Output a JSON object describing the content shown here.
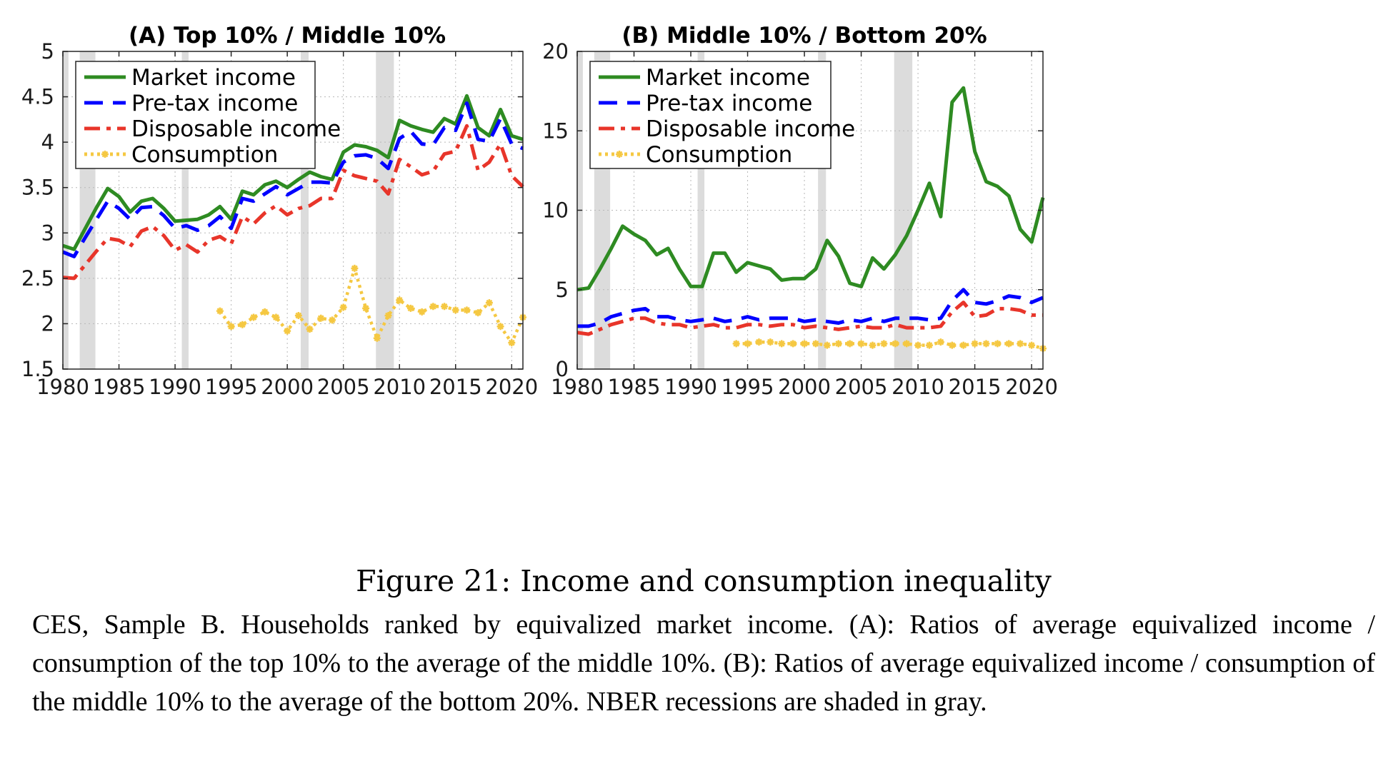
{
  "caption": {
    "title": "Figure 21: Income and consumption inequality",
    "text": "CES, Sample B. Households ranked by equivalized market income. (A): Ratios of average equivalized income / consumption of the top 10% to the average of the middle 10%. (B): Ratios of average equivalized income / consumption of the middle 10% to the average of the bottom 20%. NBER recessions are shaded in gray."
  },
  "colors": {
    "market": "#2e8b22",
    "pretax": "#0000ff",
    "disposable": "#e8352a",
    "consumption": "#f5c842",
    "recession": "#dcdcdc"
  },
  "chart_data": [
    {
      "type": "line",
      "title": "(A) Top 10% / Middle 10%",
      "xlim": [
        1980,
        2021
      ],
      "ylim": [
        1.5,
        5
      ],
      "xticks": [
        "1980",
        "1985",
        "1990",
        "1995",
        "2000",
        "2005",
        "2010",
        "2015",
        "2020"
      ],
      "yticks": [
        "1.5",
        "2",
        "2.5",
        "3",
        "3.5",
        "4",
        "4.5",
        "5"
      ],
      "grid": true,
      "legend_position": "top-left",
      "recessions": [
        [
          1980,
          1980.5
        ],
        [
          1981.5,
          1982.9
        ],
        [
          1990.6,
          1991.2
        ],
        [
          2001.2,
          2001.9
        ],
        [
          2007.9,
          2009.5
        ]
      ],
      "x": [
        1980,
        1981,
        1982,
        1983,
        1984,
        1985,
        1986,
        1987,
        1988,
        1989,
        1990,
        1991,
        1992,
        1993,
        1994,
        1995,
        1996,
        1997,
        1998,
        1999,
        2000,
        2001,
        2002,
        2003,
        2004,
        2005,
        2006,
        2007,
        2008,
        2009,
        2010,
        2011,
        2012,
        2013,
        2014,
        2015,
        2016,
        2017,
        2018,
        2019,
        2020,
        2021
      ],
      "series": [
        {
          "name": "Market income",
          "key": "market",
          "style": "solid",
          "values": [
            2.86,
            2.82,
            3.05,
            3.28,
            3.49,
            3.4,
            3.23,
            3.35,
            3.38,
            3.27,
            3.13,
            3.14,
            3.15,
            3.2,
            3.29,
            3.15,
            3.46,
            3.42,
            3.53,
            3.57,
            3.5,
            3.59,
            3.67,
            3.62,
            3.59,
            3.89,
            3.97,
            3.95,
            3.91,
            3.83,
            4.24,
            4.18,
            4.14,
            4.11,
            4.26,
            4.2,
            4.51,
            4.16,
            4.07,
            4.36,
            4.07,
            4.03
          ]
        },
        {
          "name": "Pre-tax income",
          "key": "pretax",
          "style": "dashed",
          "values": [
            2.79,
            2.74,
            2.95,
            3.15,
            3.35,
            3.27,
            3.15,
            3.28,
            3.29,
            3.19,
            3.05,
            3.08,
            3.03,
            3.08,
            3.18,
            3.05,
            3.38,
            3.35,
            3.43,
            3.51,
            3.42,
            3.49,
            3.56,
            3.56,
            3.55,
            3.78,
            3.85,
            3.86,
            3.82,
            3.71,
            4.04,
            4.12,
            3.98,
            3.97,
            4.16,
            4.13,
            4.43,
            4.03,
            4.01,
            4.26,
            3.98,
            3.93
          ]
        },
        {
          "name": "Disposable income",
          "key": "disposable",
          "style": "dashdot",
          "values": [
            2.51,
            2.5,
            2.65,
            2.8,
            2.94,
            2.92,
            2.85,
            3.02,
            3.07,
            2.97,
            2.81,
            2.87,
            2.79,
            2.92,
            2.96,
            2.88,
            3.18,
            3.1,
            3.22,
            3.3,
            3.2,
            3.27,
            3.3,
            3.38,
            3.38,
            3.69,
            3.63,
            3.6,
            3.57,
            3.43,
            3.81,
            3.73,
            3.64,
            3.68,
            3.87,
            3.9,
            4.18,
            3.69,
            3.78,
            3.98,
            3.63,
            3.51
          ]
        },
        {
          "name": "Consumption",
          "key": "consumption",
          "style": "dotted-marker",
          "x": [
            1994,
            1995,
            1996,
            1997,
            1998,
            1999,
            2000,
            2001,
            2002,
            2003,
            2004,
            2005,
            2006,
            2007,
            2008,
            2009,
            2010,
            2011,
            2012,
            2013,
            2014,
            2015,
            2016,
            2017,
            2018,
            2019,
            2020,
            2021
          ],
          "values": [
            2.14,
            1.97,
            1.99,
            2.07,
            2.13,
            2.07,
            1.92,
            2.09,
            1.94,
            2.06,
            2.04,
            2.18,
            2.61,
            2.17,
            1.84,
            2.09,
            2.26,
            2.17,
            2.13,
            2.19,
            2.19,
            2.15,
            2.15,
            2.12,
            2.23,
            1.97,
            1.79,
            2.07
          ]
        }
      ]
    },
    {
      "type": "line",
      "title": "(B) Middle 10% / Bottom 20%",
      "xlim": [
        1980,
        2021
      ],
      "ylim": [
        0,
        20
      ],
      "xticks": [
        "1980",
        "1985",
        "1990",
        "1995",
        "2000",
        "2005",
        "2010",
        "2015",
        "2020"
      ],
      "yticks": [
        "0",
        "5",
        "10",
        "15",
        "20"
      ],
      "grid": true,
      "legend_position": "top-left",
      "recessions": [
        [
          1980,
          1980.5
        ],
        [
          1981.5,
          1982.9
        ],
        [
          1990.6,
          1991.2
        ],
        [
          2001.2,
          2001.9
        ],
        [
          2007.9,
          2009.5
        ]
      ],
      "x": [
        1980,
        1981,
        1982,
        1983,
        1984,
        1985,
        1986,
        1987,
        1988,
        1989,
        1990,
        1991,
        1992,
        1993,
        1994,
        1995,
        1996,
        1997,
        1998,
        1999,
        2000,
        2001,
        2002,
        2003,
        2004,
        2005,
        2006,
        2007,
        2008,
        2009,
        2010,
        2011,
        2012,
        2013,
        2014,
        2015,
        2016,
        2017,
        2018,
        2019,
        2020,
        2021
      ],
      "series": [
        {
          "name": "Market income",
          "key": "market",
          "style": "solid",
          "values": [
            5.0,
            5.1,
            6.3,
            7.6,
            9.0,
            8.5,
            8.1,
            7.2,
            7.6,
            6.3,
            5.2,
            5.2,
            7.3,
            7.3,
            6.1,
            6.7,
            6.5,
            6.3,
            5.6,
            5.7,
            5.7,
            6.3,
            8.1,
            7.1,
            5.4,
            5.2,
            7.0,
            6.3,
            7.2,
            8.4,
            10.0,
            11.7,
            9.6,
            16.8,
            17.7,
            13.7,
            11.8,
            11.5,
            10.9,
            8.8,
            8.0,
            10.8
          ]
        },
        {
          "name": "Pre-tax income",
          "key": "pretax",
          "style": "dashed",
          "values": [
            2.7,
            2.7,
            2.9,
            3.3,
            3.5,
            3.7,
            3.8,
            3.3,
            3.3,
            3.1,
            3.0,
            3.1,
            3.2,
            3.0,
            3.1,
            3.3,
            3.1,
            3.2,
            3.2,
            3.2,
            3.0,
            3.1,
            3.0,
            2.9,
            3.1,
            3.0,
            3.2,
            3.0,
            3.2,
            3.2,
            3.2,
            3.1,
            3.2,
            4.3,
            5.0,
            4.2,
            4.1,
            4.3,
            4.6,
            4.5,
            4.2,
            4.5
          ]
        },
        {
          "name": "Disposable income",
          "key": "disposable",
          "style": "dashdot",
          "values": [
            2.3,
            2.2,
            2.5,
            2.8,
            3.0,
            3.2,
            3.2,
            2.9,
            2.8,
            2.8,
            2.6,
            2.7,
            2.8,
            2.6,
            2.6,
            2.8,
            2.8,
            2.7,
            2.8,
            2.8,
            2.6,
            2.7,
            2.6,
            2.5,
            2.6,
            2.7,
            2.6,
            2.6,
            2.8,
            2.6,
            2.6,
            2.6,
            2.7,
            3.6,
            4.2,
            3.3,
            3.4,
            3.8,
            3.8,
            3.7,
            3.4,
            3.4
          ]
        },
        {
          "name": "Consumption",
          "key": "consumption",
          "style": "dotted-marker",
          "x": [
            1994,
            1995,
            1996,
            1997,
            1998,
            1999,
            2000,
            2001,
            2002,
            2003,
            2004,
            2005,
            2006,
            2007,
            2008,
            2009,
            2010,
            2011,
            2012,
            2013,
            2014,
            2015,
            2016,
            2017,
            2018,
            2019,
            2020,
            2021
          ],
          "values": [
            1.6,
            1.6,
            1.7,
            1.7,
            1.6,
            1.6,
            1.6,
            1.6,
            1.5,
            1.6,
            1.6,
            1.6,
            1.5,
            1.6,
            1.6,
            1.6,
            1.5,
            1.5,
            1.7,
            1.5,
            1.5,
            1.6,
            1.6,
            1.6,
            1.6,
            1.6,
            1.5,
            1.3
          ]
        }
      ]
    }
  ]
}
